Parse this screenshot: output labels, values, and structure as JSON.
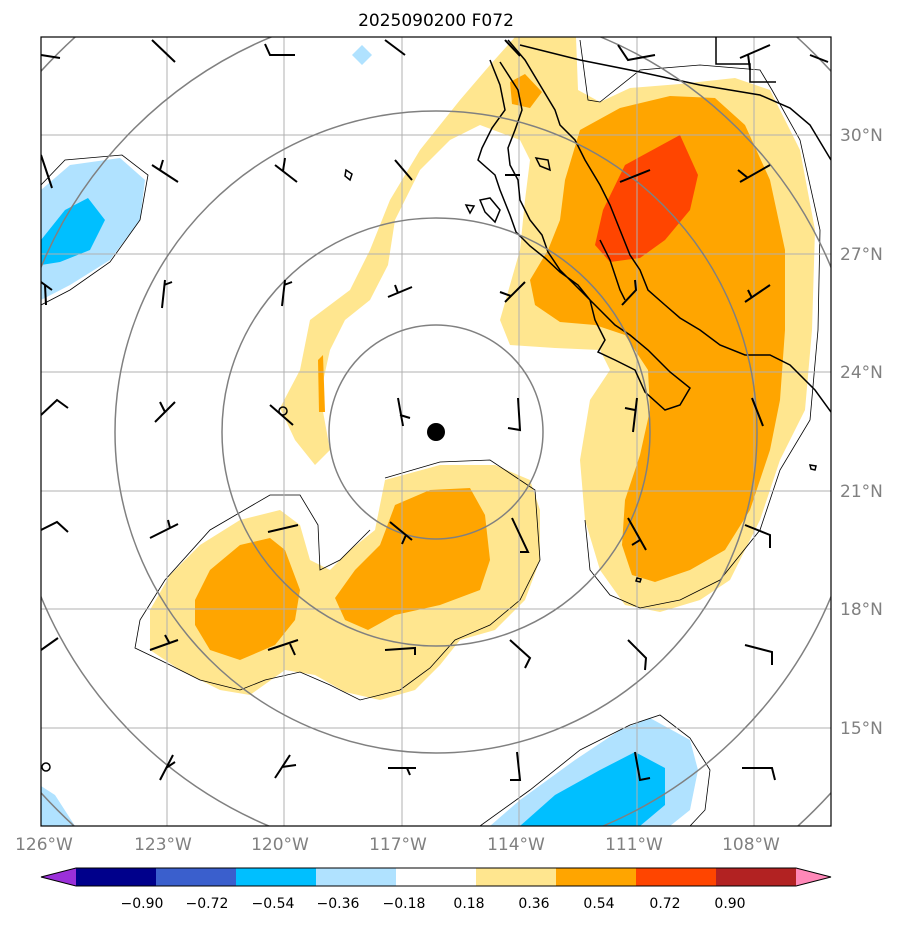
{
  "title": "2025090200 F072",
  "map": {
    "lon_labels": [
      "126°W",
      "123°W",
      "120°W",
      "117°W",
      "114°W",
      "111°W",
      "108°W"
    ],
    "lat_labels": [
      "30°N",
      "27°N",
      "24°N",
      "21°N",
      "18°N",
      "15°N"
    ],
    "storm_center": {
      "lon": -116.2,
      "lat": 22.5
    },
    "range_rings": 5,
    "wind_barbs": "black"
  },
  "colorbar": {
    "ticks": [
      "−0.90",
      "−0.72",
      "−0.54",
      "−0.36",
      "−0.18",
      "0.18",
      "0.36",
      "0.54",
      "0.72",
      "0.90"
    ],
    "colors": [
      "#9b30d9",
      "#00008b",
      "#3a5fcd",
      "#00bfff",
      "#b0e2ff",
      "#ffffff",
      "#ffe68f",
      "#ffa500",
      "#ff4500",
      "#b22222",
      "#ff88b8"
    ]
  }
}
